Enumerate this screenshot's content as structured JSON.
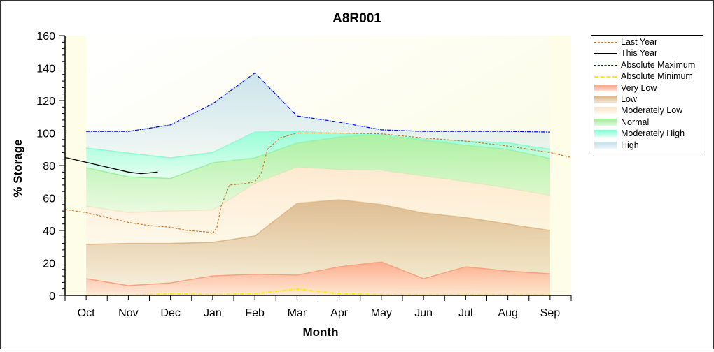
{
  "chart_data": {
    "type": "area",
    "title": "A8R001",
    "xlabel": "Month",
    "ylabel": "% Storage",
    "ylim": [
      0,
      160
    ],
    "yticks": [
      "0",
      "20",
      "40",
      "60",
      "80",
      "100",
      "120",
      "140",
      "160"
    ],
    "categories": [
      "Oct",
      "Nov",
      "Dec",
      "Jan",
      "Feb",
      "Mar",
      "Apr",
      "May",
      "Jun",
      "Jul",
      "Aug",
      "Sep"
    ],
    "xlim": [
      -0.5,
      11.5
    ],
    "bands": [
      {
        "name": "Very Low",
        "color": "#ff9f80",
        "upper": [
          10.3,
          6,
          7.7,
          12,
          13,
          12.5,
          17.6,
          20.6,
          10.3,
          17.6,
          15,
          13.3
        ]
      },
      {
        "name": "Low",
        "color": "#d9b282",
        "upper": [
          31.4,
          32,
          32,
          32.7,
          36.6,
          56.8,
          59,
          56,
          50.8,
          48,
          44,
          40
        ]
      },
      {
        "name": "Moderately Low",
        "color": "#ffe6cc",
        "upper": [
          55,
          51,
          52,
          52.5,
          69,
          79,
          77.4,
          77,
          73.5,
          70,
          66,
          61.5
        ]
      },
      {
        "name": "Normal",
        "color": "#9eee96",
        "upper": [
          78.7,
          73,
          72,
          81.7,
          84.7,
          93.8,
          97.6,
          99.4,
          95.5,
          92.5,
          90,
          84.3
        ]
      },
      {
        "name": "Moderately High",
        "color": "#86ffd4",
        "upper": [
          90.8,
          87.7,
          84.7,
          88,
          100.6,
          101,
          99.8,
          99,
          96.3,
          95,
          94,
          90
        ]
      },
      {
        "name": "High",
        "color": "#c2dfea",
        "upper": [
          101,
          101,
          105,
          118,
          137,
          110.5,
          106.7,
          102,
          101,
          101,
          101,
          100.6
        ]
      }
    ],
    "series": [
      {
        "name": "Last Year",
        "color": "#d2782c",
        "style": "dashed",
        "x": [
          -0.5,
          0,
          0.5,
          1,
          1.5,
          2,
          2.4,
          2.9,
          3.0,
          3.1,
          3.2,
          3.4,
          3.8,
          4.0,
          4.15,
          4.3,
          4.6,
          5.0,
          6.0,
          7.0,
          8.0,
          9.0,
          10.0,
          11.0,
          11.5
        ],
        "y": [
          53,
          51,
          48,
          45,
          43,
          42,
          40,
          39,
          38,
          42,
          55,
          68,
          69,
          70,
          75,
          90,
          97,
          100,
          100,
          99.5,
          97,
          95,
          92,
          88,
          85
        ]
      },
      {
        "name": "This Year",
        "color": "#000000",
        "style": "solid",
        "x": [
          -0.5,
          0,
          0.5,
          1,
          1.3,
          1.7
        ],
        "y": [
          85,
          82,
          79,
          76,
          75,
          76
        ]
      },
      {
        "name": "Absolute Maximum",
        "color": "#0000ff",
        "style": "dashdot",
        "x": [
          0,
          1,
          2,
          3,
          4,
          5,
          6,
          7,
          8,
          9,
          10,
          11
        ],
        "y": [
          101,
          101,
          105,
          118,
          137,
          110.5,
          106.7,
          102,
          101,
          101,
          101,
          100.6
        ]
      },
      {
        "name": "Absolute Minimum",
        "color": "#ffee00",
        "style": "dashdot",
        "x": [
          0,
          1,
          2,
          3,
          4,
          5,
          6,
          7,
          8,
          9,
          10,
          11
        ],
        "y": [
          0,
          0,
          1,
          0.5,
          1,
          4,
          1,
          0.5,
          0.5,
          0.5,
          0.5,
          0.5
        ]
      }
    ],
    "legend": [
      "Last Year",
      "This Year",
      "Absolute Maximum",
      "Absolute Minimum",
      "Very Low",
      "Low",
      "Moderately Low",
      "Normal",
      "Moderately High",
      "High"
    ],
    "legend_position": "right"
  }
}
